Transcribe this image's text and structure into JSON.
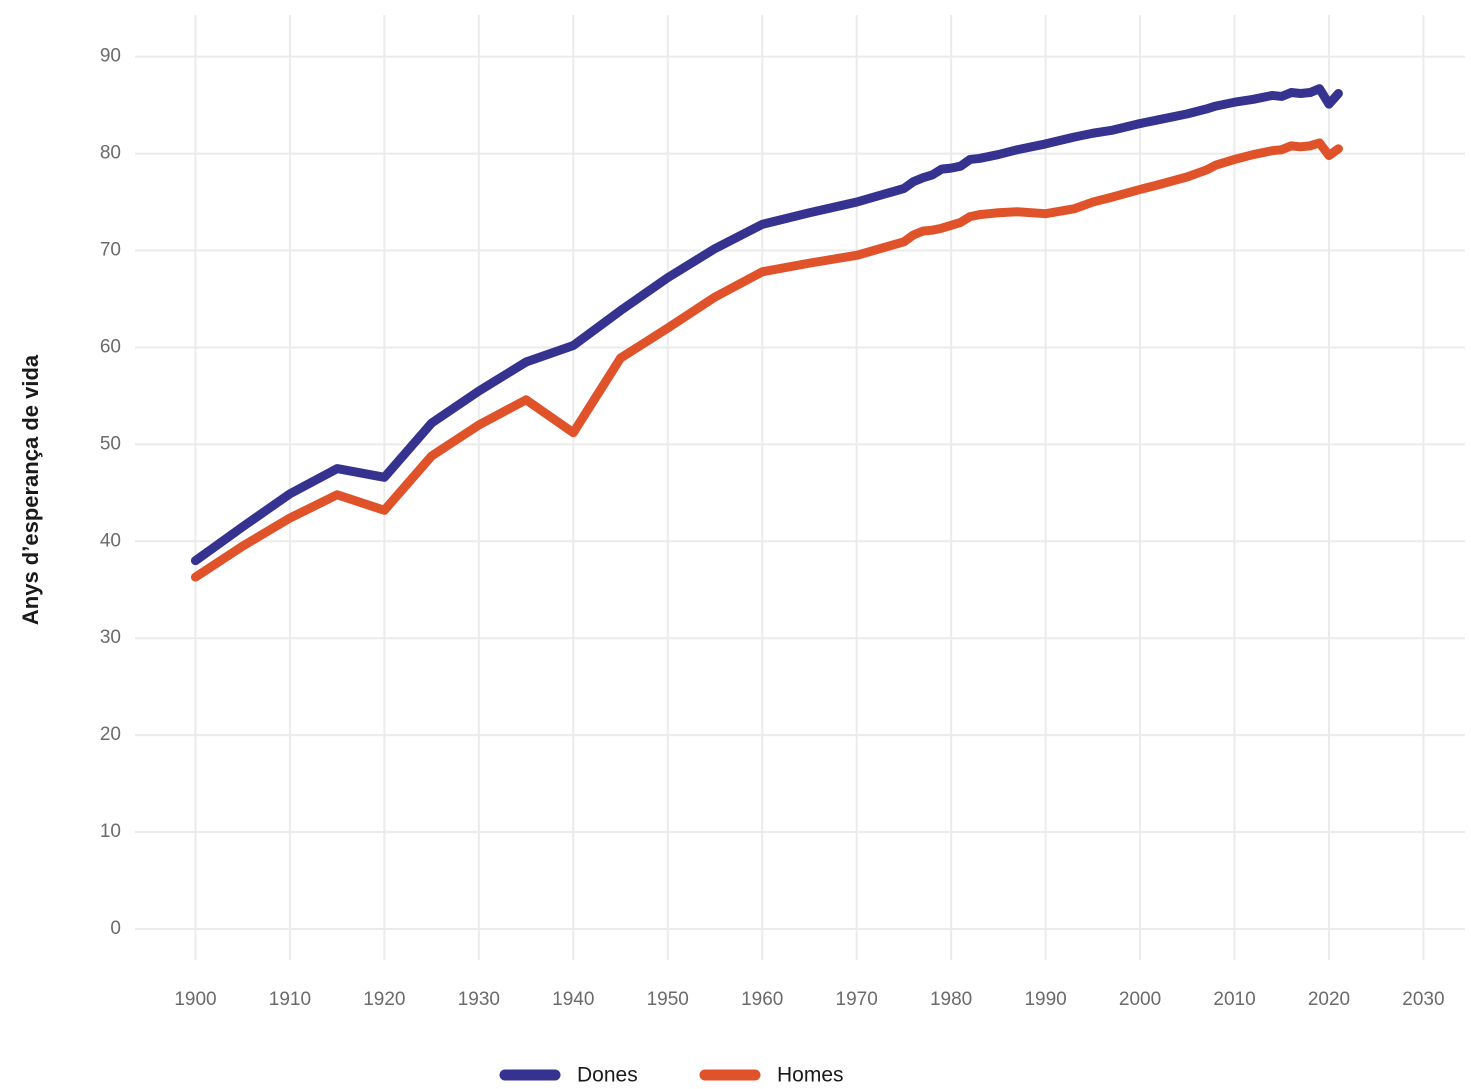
{
  "chart_data": {
    "type": "line",
    "y_label": "Anys d’esperança de vida",
    "x": [
      1900,
      1905,
      1910,
      1915,
      1920,
      1925,
      1930,
      1935,
      1940,
      1945,
      1950,
      1955,
      1960,
      1965,
      1970,
      1975,
      1976,
      1977,
      1978,
      1979,
      1980,
      1981,
      1982,
      1983,
      1985,
      1987,
      1990,
      1993,
      1995,
      1997,
      2000,
      2002,
      2005,
      2007,
      2008,
      2010,
      2012,
      2014,
      2015,
      2016,
      2017,
      2018,
      2019,
      2020,
      2021
    ],
    "series": [
      {
        "name": "Dones",
        "color": "#36328f",
        "values": [
          38,
          41.5,
          44.9,
          47.5,
          46.6,
          52.2,
          55.5,
          58.5,
          60.2,
          63.8,
          67.2,
          70.2,
          72.7,
          73.9,
          75.0,
          76.4,
          77.1,
          77.5,
          77.8,
          78.4,
          78.5,
          78.7,
          79.4,
          79.5,
          79.9,
          80.4,
          81.0,
          81.7,
          82.1,
          82.4,
          83.1,
          83.5,
          84.1,
          84.6,
          84.9,
          85.3,
          85.6,
          86.0,
          85.9,
          86.3,
          86.2,
          86.3,
          86.7,
          85.1,
          86.2
        ]
      },
      {
        "name": "Homes",
        "color": "#e05229",
        "values": [
          36.3,
          39.5,
          42.4,
          44.8,
          43.2,
          48.8,
          52.0,
          54.6,
          51.2,
          58.9,
          62.0,
          65.2,
          67.8,
          68.7,
          69.5,
          70.9,
          71.6,
          72.0,
          72.1,
          72.3,
          72.6,
          72.9,
          73.5,
          73.7,
          73.9,
          74.0,
          73.8,
          74.3,
          75.0,
          75.5,
          76.3,
          76.8,
          77.6,
          78.3,
          78.8,
          79.4,
          79.9,
          80.3,
          80.4,
          80.8,
          80.7,
          80.8,
          81.1,
          79.8,
          80.5
        ]
      }
    ],
    "xlim": [
      1893.6,
      2034.4
    ],
    "xticks": [
      1900,
      1910,
      1920,
      1930,
      1940,
      1950,
      1960,
      1970,
      1980,
      1990,
      2000,
      2010,
      2020,
      2030
    ],
    "ylim": [
      -3.2,
      94.3
    ],
    "yticks": [
      0,
      10,
      20,
      30,
      40,
      50,
      60,
      70,
      80,
      90
    ],
    "grid": true,
    "legend": "bottom"
  }
}
